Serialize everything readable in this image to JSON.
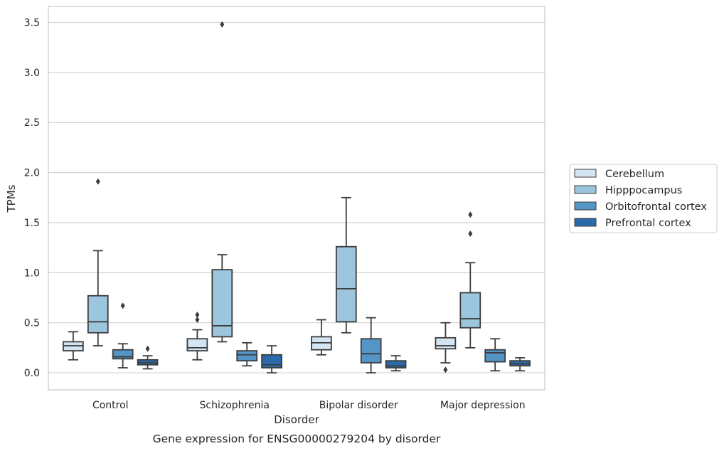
{
  "chart_data": {
    "type": "box",
    "title": "Gene expression for ENSG00000279204 by disorder",
    "xlabel": "Disorder",
    "ylabel": "TPMs",
    "ylim": [
      -0.17,
      3.66
    ],
    "yticks": [
      0.0,
      0.5,
      1.0,
      1.5,
      2.0,
      2.5,
      3.0,
      3.5
    ],
    "ytick_labels": [
      "0.0",
      "0.5",
      "1.0",
      "1.5",
      "2.0",
      "2.5",
      "3.0",
      "3.5"
    ],
    "grid": "horizontal",
    "legend_position": "right",
    "categories": [
      "Control",
      "Schizophrenia",
      "Bipolar disorder",
      "Major depression"
    ],
    "series": [
      {
        "name": "Cerebellum",
        "color": "#d3e4f3",
        "boxes": [
          {
            "whislo": 0.13,
            "q1": 0.22,
            "med": 0.27,
            "q3": 0.31,
            "whishi": 0.41,
            "fliers": []
          },
          {
            "whislo": 0.13,
            "q1": 0.22,
            "med": 0.25,
            "q3": 0.34,
            "whishi": 0.43,
            "fliers": [
              0.53,
              0.58
            ]
          },
          {
            "whislo": 0.18,
            "q1": 0.23,
            "med": 0.3,
            "q3": 0.36,
            "whishi": 0.53,
            "fliers": []
          },
          {
            "whislo": 0.1,
            "q1": 0.24,
            "med": 0.27,
            "q3": 0.35,
            "whishi": 0.5,
            "fliers": [
              0.03
            ]
          }
        ]
      },
      {
        "name": "Hipppocampus",
        "color": "#9cc5de",
        "boxes": [
          {
            "whislo": 0.27,
            "q1": 0.4,
            "med": 0.51,
            "q3": 0.77,
            "whishi": 1.22,
            "fliers": [
              1.91
            ]
          },
          {
            "whislo": 0.31,
            "q1": 0.36,
            "med": 0.47,
            "q3": 1.03,
            "whishi": 1.18,
            "fliers": [
              3.48
            ]
          },
          {
            "whislo": 0.4,
            "q1": 0.51,
            "med": 0.84,
            "q3": 1.26,
            "whishi": 1.75,
            "fliers": []
          },
          {
            "whislo": 0.25,
            "q1": 0.45,
            "med": 0.54,
            "q3": 0.8,
            "whishi": 1.1,
            "fliers": [
              1.39,
              1.58
            ]
          }
        ]
      },
      {
        "name": "Orbitofrontal cortex",
        "color": "#5495c6",
        "boxes": [
          {
            "whislo": 0.05,
            "q1": 0.14,
            "med": 0.16,
            "q3": 0.23,
            "whishi": 0.29,
            "fliers": [
              0.67
            ]
          },
          {
            "whislo": 0.07,
            "q1": 0.12,
            "med": 0.18,
            "q3": 0.22,
            "whishi": 0.3,
            "fliers": []
          },
          {
            "whislo": 0.0,
            "q1": 0.1,
            "med": 0.19,
            "q3": 0.34,
            "whishi": 0.55,
            "fliers": []
          },
          {
            "whislo": 0.02,
            "q1": 0.11,
            "med": 0.2,
            "q3": 0.23,
            "whishi": 0.34,
            "fliers": []
          }
        ]
      },
      {
        "name": "Prefrontal cortex",
        "color": "#2a6aaa",
        "boxes": [
          {
            "whislo": 0.04,
            "q1": 0.08,
            "med": 0.1,
            "q3": 0.13,
            "whishi": 0.17,
            "fliers": [
              0.24
            ]
          },
          {
            "whislo": 0.0,
            "q1": 0.05,
            "med": 0.08,
            "q3": 0.18,
            "whishi": 0.27,
            "fliers": []
          },
          {
            "whislo": 0.02,
            "q1": 0.05,
            "med": 0.07,
            "q3": 0.12,
            "whishi": 0.17,
            "fliers": []
          },
          {
            "whislo": 0.02,
            "q1": 0.07,
            "med": 0.09,
            "q3": 0.12,
            "whishi": 0.15,
            "fliers": []
          }
        ]
      }
    ]
  }
}
